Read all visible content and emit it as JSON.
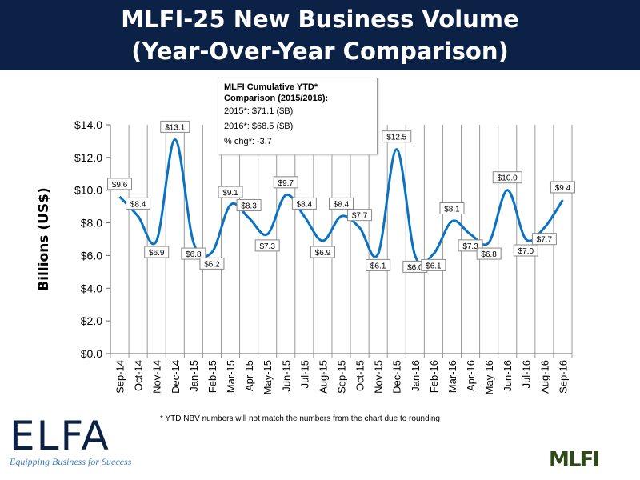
{
  "header": {
    "title_line1": "MLFI-25 New Business Volume",
    "title_line2": "(Year-Over-Year Comparison)"
  },
  "tooltip": {
    "heading": "MLFI Cumulative YTD* Comparison (2015/2016):",
    "line1": "2015*: $71.1 ($B)",
    "line2": "2016*: $68.5  ($B)",
    "line3": "% chg*: -3.7"
  },
  "footnote": "*  YTD NBV numbers will not match the numbers from the chart due to rounding",
  "logos": {
    "elfa": "ELFA",
    "elfa_tagline": "Equipping Business for Success",
    "mlfi": "MLFI"
  },
  "chart_data": {
    "type": "line",
    "title": "",
    "xlabel": "",
    "ylabel": "Billions (US$)",
    "ylim": [
      0,
      14
    ],
    "yticks": [
      "$0.0",
      "$2.0",
      "$4.0",
      "$6.0",
      "$8.0",
      "$10.0",
      "$12.0",
      "$14.0"
    ],
    "grid": "vertical",
    "smooth": true,
    "color": "#0a72c2",
    "categories": [
      "Sep-14",
      "Oct-14",
      "Nov-14",
      "Dec-14",
      "Jan-15",
      "Feb-15",
      "Mar-15",
      "Apr-15",
      "May-15",
      "Jun-15",
      "Jul-15",
      "Aug-15",
      "Sep-15",
      "Oct-15",
      "Nov-15",
      "Dec-15",
      "Jan-16",
      "Feb-16",
      "Mar-16",
      "Apr-16",
      "May-16",
      "Jun-16",
      "Jul-16",
      "Aug-16",
      "Sep-16"
    ],
    "values": [
      9.6,
      8.4,
      6.9,
      13.1,
      6.8,
      6.2,
      9.1,
      8.3,
      7.3,
      9.7,
      8.4,
      6.9,
      8.4,
      7.7,
      6.1,
      12.5,
      6.0,
      6.1,
      8.1,
      7.3,
      6.8,
      10.0,
      7.0,
      7.7,
      9.4
    ],
    "data_labels": [
      "$9.6",
      "$8.4",
      "$6.9",
      "$13.1",
      "$6.8",
      "$6.2",
      "$9.1",
      "$8.3",
      "$7.3",
      "$9.7",
      "$8.4",
      "$6.9",
      "$8.4",
      "$7.7",
      "$6.1",
      "$12.5",
      "$6.0",
      "$6.1",
      "$8.1",
      "$7.3",
      "$6.8",
      "$10.0",
      "$7.0",
      "$7.7",
      "$9.4"
    ]
  }
}
